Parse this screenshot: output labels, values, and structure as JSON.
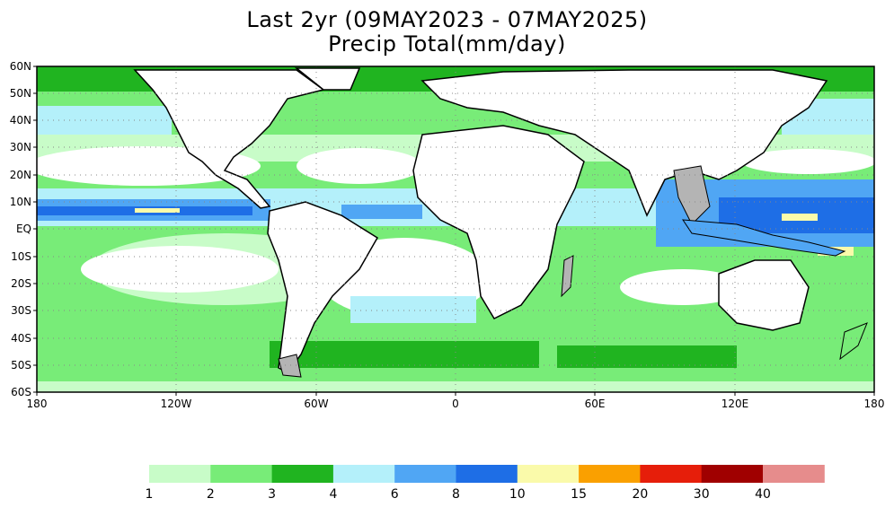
{
  "title": {
    "line1": "Last 2yr (09MAY2023 - 07MAY2025)",
    "line2": "Precip Total(mm/day)"
  },
  "axes": {
    "lat_labels": [
      "60N",
      "50N",
      "40N",
      "30N",
      "20N",
      "10N",
      "EQ",
      "10S",
      "20S",
      "30S",
      "40S",
      "50S",
      "60S"
    ],
    "lon_labels": [
      "180",
      "120W",
      "60W",
      "0",
      "60E",
      "120E",
      "180"
    ]
  },
  "colorbar": {
    "colors": [
      "#c8fcc8",
      "#78ec78",
      "#20b420",
      "#b4f0fa",
      "#50a6f4",
      "#1e6ee6",
      "#fafaaa",
      "#faa000",
      "#e61e0a",
      "#a00000",
      "#e68c8c"
    ],
    "labels": [
      "1",
      "2",
      "3",
      "4",
      "6",
      "8",
      "10",
      "15",
      "20",
      "30",
      "40"
    ]
  },
  "palette": {
    "ocean_dry": "#ffffff",
    "land": "#ffffff",
    "coast": "#000000",
    "borders": "#8c8c8c",
    "gray_land": "#b4b4b4"
  }
}
